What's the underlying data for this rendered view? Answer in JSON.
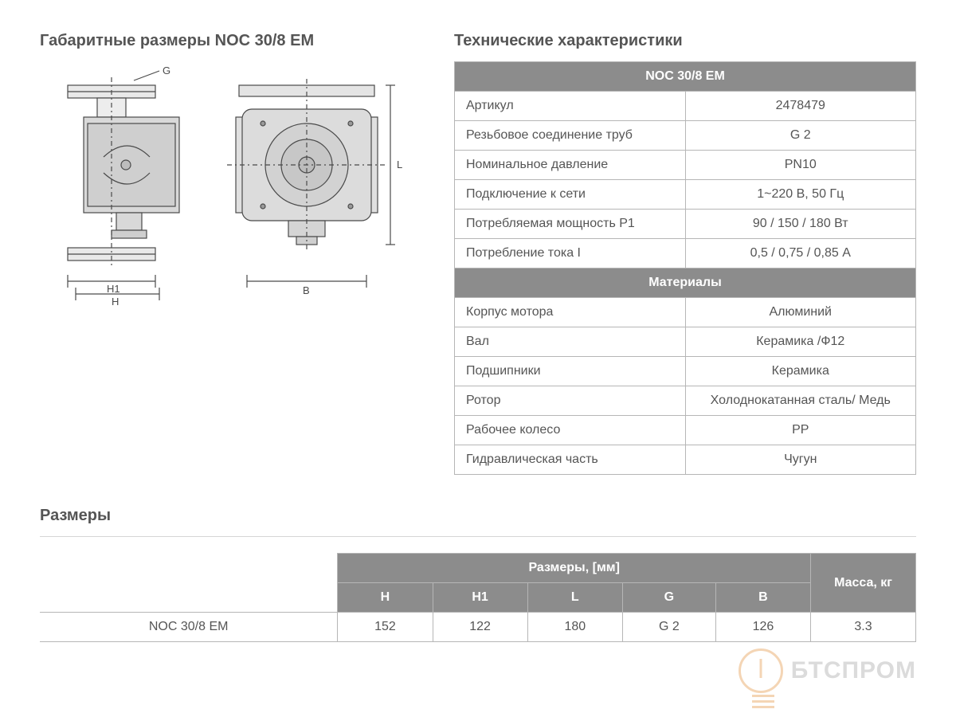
{
  "left": {
    "title": "Габаритные размеры NOC 30/8 EM",
    "dim_labels": {
      "G": "G",
      "L": "L",
      "H1": "H1",
      "H": "H",
      "B": "B"
    }
  },
  "spec": {
    "title": "Технические характеристики",
    "header": "NOC 30/8 EM",
    "rows1": [
      {
        "label": "Артикул",
        "value": "2478479"
      },
      {
        "label": "Резьбовое соединение труб",
        "value": "G 2"
      },
      {
        "label": "Номинальное давление",
        "value": "PN10"
      },
      {
        "label": "Подключение к сети",
        "value": "1~220 В, 50 Гц"
      },
      {
        "label": "Потребляемая мощность P1",
        "value": "90 / 150 / 180 Вт"
      },
      {
        "label": "Потребление тока I",
        "value": "0,5 / 0,75 / 0,85 А"
      }
    ],
    "header2": "Материалы",
    "rows2": [
      {
        "label": "Корпус мотора",
        "value": "Алюминий"
      },
      {
        "label": "Вал",
        "value": "Керамика /Ф12"
      },
      {
        "label": "Подшипники",
        "value": "Керамика"
      },
      {
        "label": "Ротор",
        "value": "Холоднокатанная сталь/ Медь"
      },
      {
        "label": "Рабочее колесо",
        "value": "PP"
      },
      {
        "label": "Гидравлическая часть",
        "value": "Чугун"
      }
    ]
  },
  "dims": {
    "title": "Размеры",
    "group_header": "Размеры, [мм]",
    "mass_header": "Масса, кг",
    "cols": [
      "H",
      "H1",
      "L",
      "G",
      "B"
    ],
    "row": {
      "name": "NOC 30/8 EM",
      "values": [
        "152",
        "122",
        "180",
        "G 2",
        "126"
      ],
      "mass": "3.3"
    }
  },
  "watermark": "БТСПРОМ",
  "colors": {
    "header_bg": "#8c8c8c",
    "border": "#b6b6b6",
    "text": "#555555",
    "accent": "#e08a2d"
  }
}
